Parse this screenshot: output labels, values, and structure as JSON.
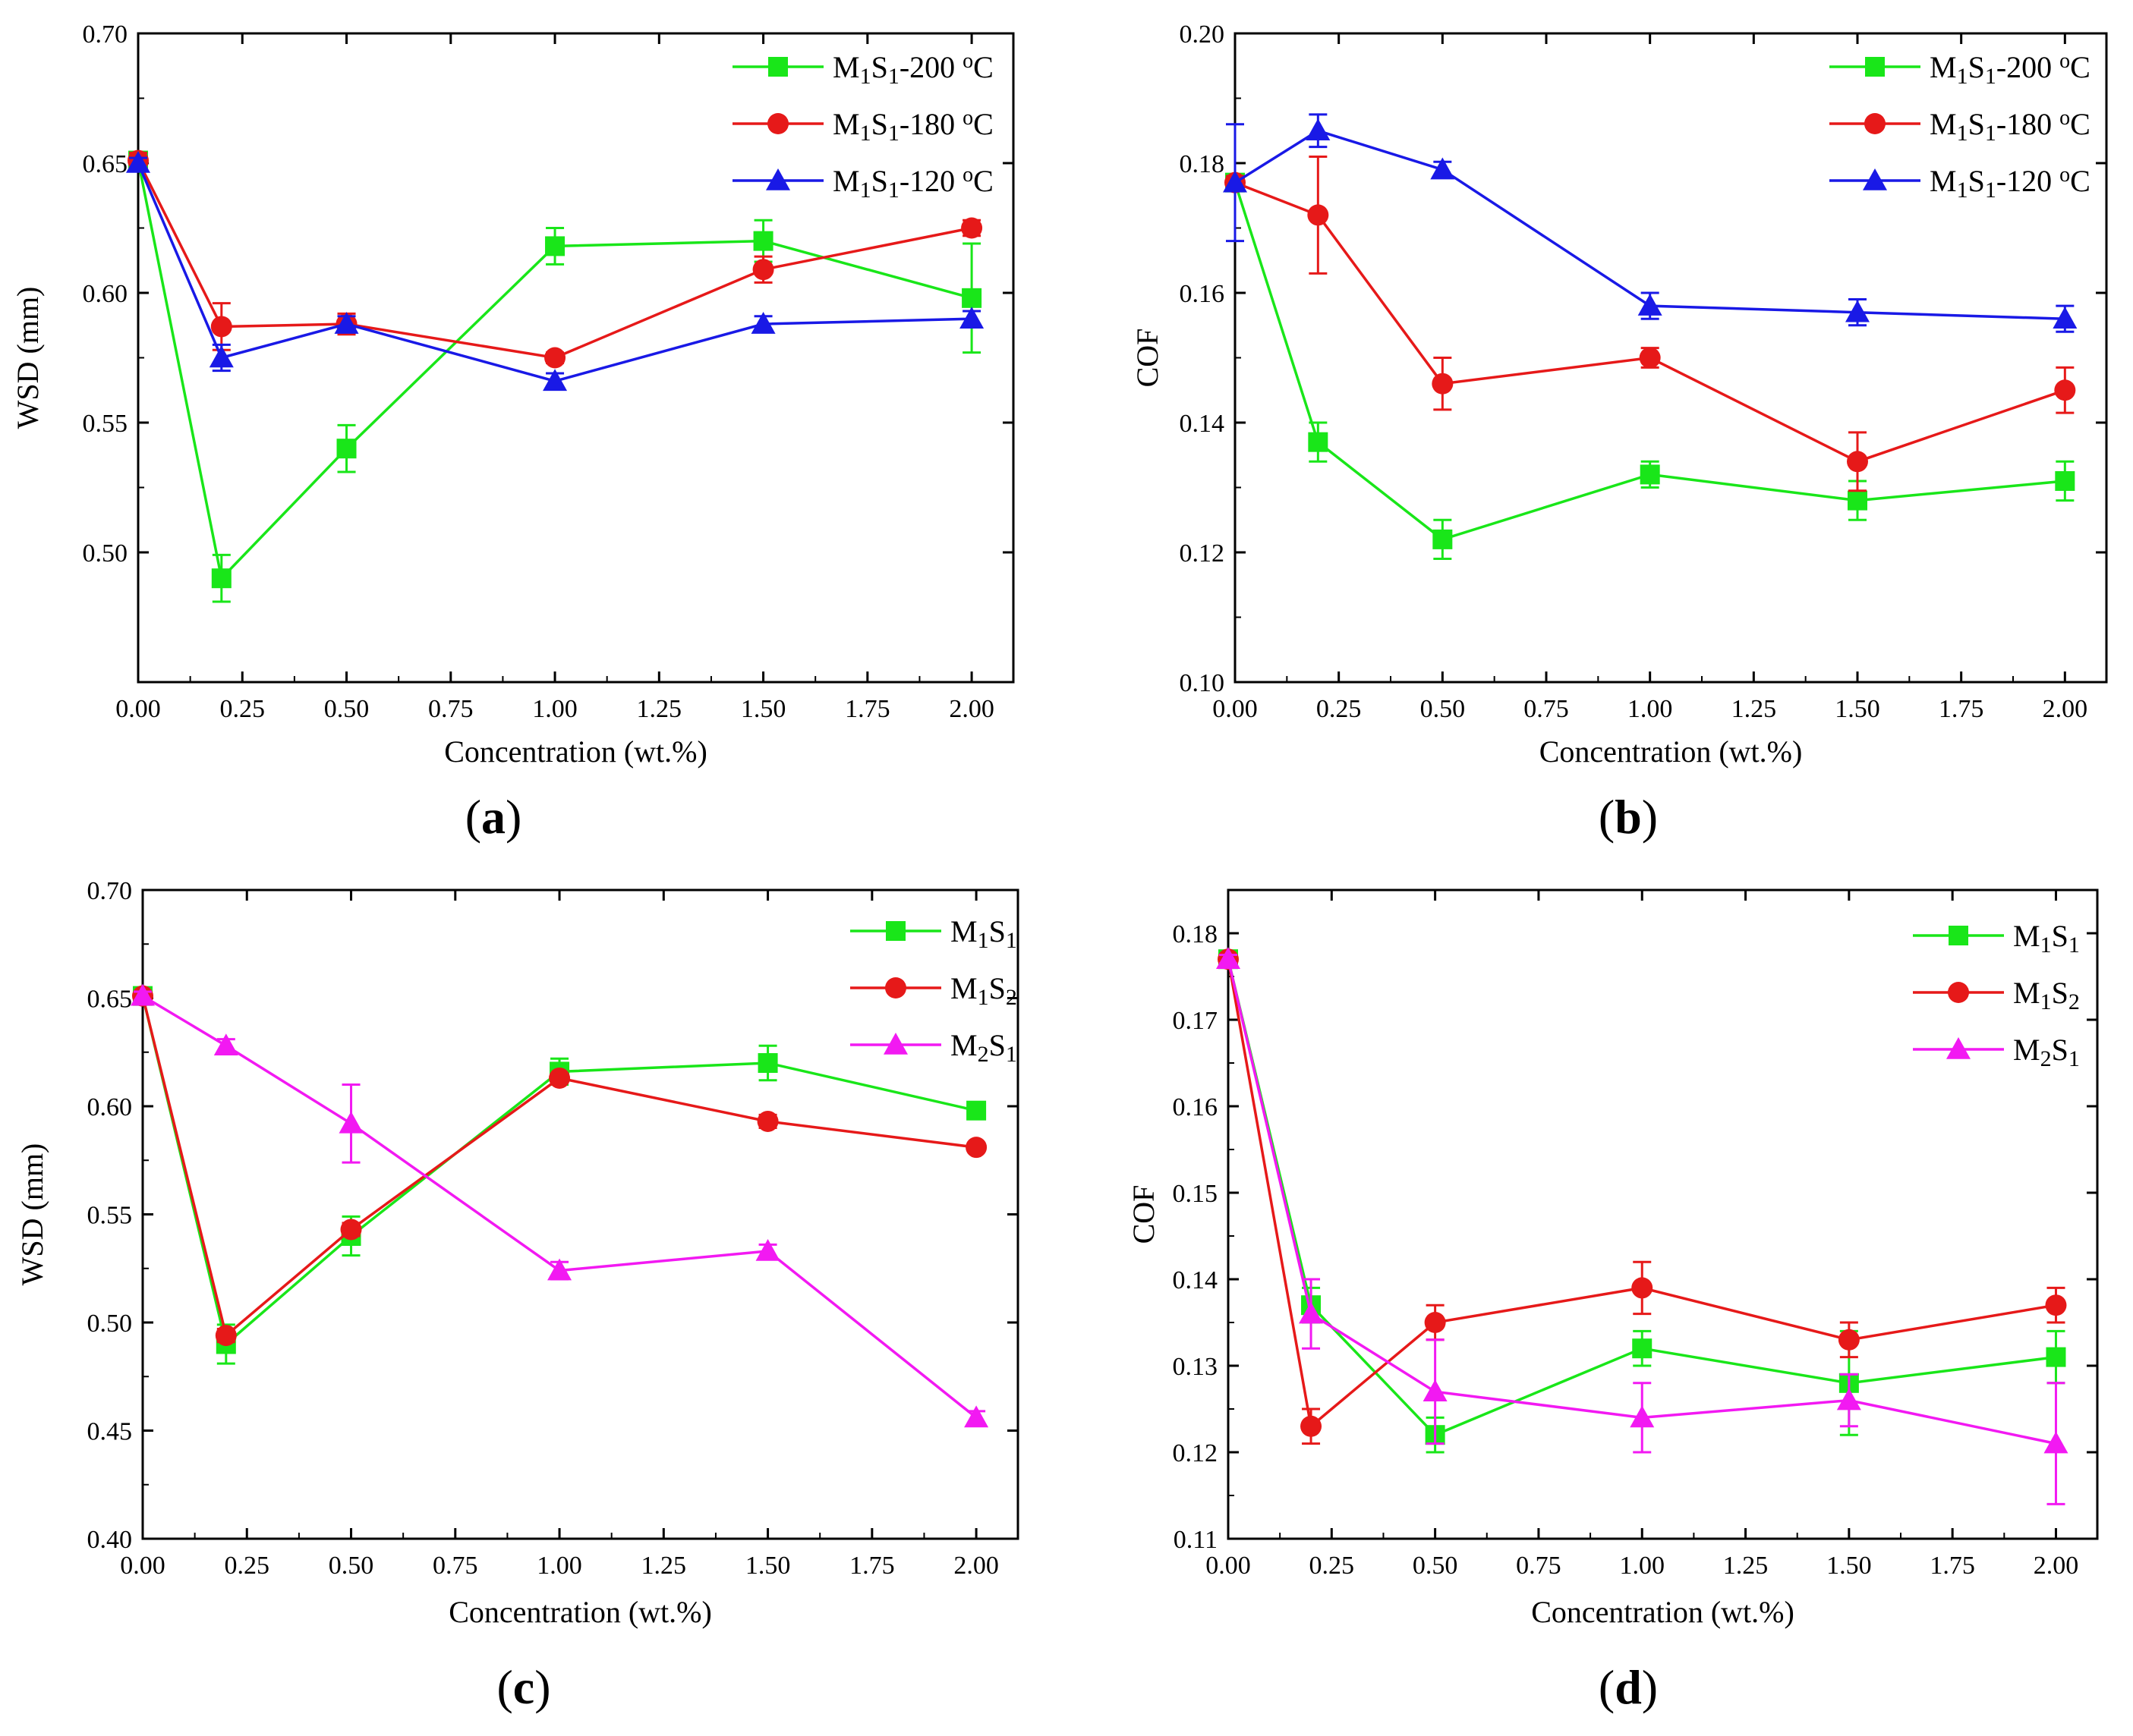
{
  "colors": {
    "green": "#19e619",
    "red": "#e61919",
    "blue": "#1919e6",
    "magenta": "#f219f2"
  },
  "chart_data": [
    {
      "type": "line",
      "panel_label": "(a)",
      "xlabel": "Concentration (wt.%)",
      "ylabel": "WSD (mm)",
      "xlim": [
        0,
        2.1
      ],
      "ylim": [
        0.45,
        0.7
      ],
      "xticks": [
        0,
        0.25,
        0.5,
        0.75,
        1.0,
        1.25,
        1.5,
        1.75,
        2.0
      ],
      "xtick_labels": [
        "0.00",
        "0.25",
        "0.50",
        "0.75",
        "1.00",
        "1.25",
        "1.50",
        "1.75",
        "2.00"
      ],
      "yticks": [
        0.5,
        0.55,
        0.6,
        0.65,
        0.7
      ],
      "ytick_labels": [
        "0.50",
        "0.55",
        "0.60",
        "0.65",
        "0.70"
      ],
      "x": [
        0,
        0.2,
        0.5,
        1.0,
        1.5,
        2.0
      ],
      "series": [
        {
          "name": "M1S1-200 °C",
          "base": "M",
          "sub1": "1",
          "mid": "S",
          "sub2": "1",
          "suffix": "-200 ",
          "sup": "o",
          "unit": "C",
          "color": "green",
          "marker": "square",
          "values": [
            0.651,
            0.49,
            0.54,
            0.618,
            0.62,
            0.598
          ],
          "err": [
            0.003,
            0.009,
            0.009,
            0.007,
            0.008,
            0.021
          ]
        },
        {
          "name": "M1S1-180 °C",
          "base": "M",
          "sub1": "1",
          "mid": "S",
          "sub2": "1",
          "suffix": "-180 ",
          "sup": "o",
          "unit": "C",
          "color": "red",
          "marker": "circle",
          "values": [
            0.651,
            0.587,
            0.588,
            0.575,
            0.609,
            0.625
          ],
          "err": [
            0.003,
            0.009,
            0.004,
            0.002,
            0.005,
            0.003
          ]
        },
        {
          "name": "M1S1-120 °C",
          "base": "M",
          "sub1": "1",
          "mid": "S",
          "sub2": "1",
          "suffix": "-120 ",
          "sup": "o",
          "unit": "C",
          "color": "blue",
          "marker": "triangle",
          "values": [
            0.65,
            0.575,
            0.588,
            0.566,
            0.588,
            0.59
          ],
          "err": [
            0.002,
            0.005,
            0.003,
            0.003,
            0.003,
            0.003
          ]
        }
      ]
    },
    {
      "type": "line",
      "panel_label": "(b)",
      "xlabel": "Concentration (wt.%)",
      "ylabel": "COF",
      "xlim": [
        0,
        2.1
      ],
      "ylim": [
        0.1,
        0.2
      ],
      "xticks": [
        0,
        0.25,
        0.5,
        0.75,
        1.0,
        1.25,
        1.5,
        1.75,
        2.0
      ],
      "xtick_labels": [
        "0.00",
        "0.25",
        "0.50",
        "0.75",
        "1.00",
        "1.25",
        "1.50",
        "1.75",
        "2.00"
      ],
      "yticks": [
        0.1,
        0.12,
        0.14,
        0.16,
        0.18,
        0.2
      ],
      "ytick_labels": [
        "0.10",
        "0.12",
        "0.14",
        "0.16",
        "0.18",
        "0.20"
      ],
      "x": [
        0,
        0.2,
        0.5,
        1.0,
        1.5,
        2.0
      ],
      "series": [
        {
          "name": "M1S1-200 °C",
          "base": "M",
          "sub1": "1",
          "mid": "S",
          "sub2": "1",
          "suffix": "-200 ",
          "sup": "o",
          "unit": "C",
          "color": "green",
          "marker": "square",
          "values": [
            0.177,
            0.137,
            0.122,
            0.132,
            0.128,
            0.131
          ],
          "err": [
            0.001,
            0.003,
            0.003,
            0.002,
            0.003,
            0.003
          ]
        },
        {
          "name": "M1S1-180 °C",
          "base": "M",
          "sub1": "1",
          "mid": "S",
          "sub2": "1",
          "suffix": "-180 ",
          "sup": "o",
          "unit": "C",
          "color": "red",
          "marker": "circle",
          "values": [
            0.177,
            0.172,
            0.146,
            0.15,
            0.134,
            0.145
          ],
          "err": [
            0.001,
            0.009,
            0.004,
            0.0015,
            0.0045,
            0.0035
          ]
        },
        {
          "name": "M1S1-120 °C",
          "base": "M",
          "sub1": "1",
          "mid": "S",
          "sub2": "1",
          "suffix": "-120 ",
          "sup": "o",
          "unit": "C",
          "color": "blue",
          "marker": "triangle",
          "values": [
            0.177,
            0.185,
            0.179,
            0.158,
            0.157,
            0.156
          ],
          "err": [
            0.009,
            0.0025,
            0.0012,
            0.002,
            0.002,
            0.002
          ]
        }
      ]
    },
    {
      "type": "line",
      "panel_label": "(c)",
      "xlabel": "Concentration (wt.%)",
      "ylabel": "WSD (mm)",
      "xlim": [
        0,
        2.1
      ],
      "ylim": [
        0.4,
        0.7
      ],
      "xticks": [
        0,
        0.25,
        0.5,
        0.75,
        1.0,
        1.25,
        1.5,
        1.75,
        2.0
      ],
      "xtick_labels": [
        "0.00",
        "0.25",
        "0.50",
        "0.75",
        "1.00",
        "1.25",
        "1.50",
        "1.75",
        "2.00"
      ],
      "yticks": [
        0.4,
        0.45,
        0.5,
        0.55,
        0.6,
        0.65,
        0.7
      ],
      "ytick_labels": [
        "0.40",
        "0.45",
        "0.50",
        "0.55",
        "0.60",
        "0.65",
        "0.70"
      ],
      "x": [
        0,
        0.2,
        0.5,
        1.0,
        1.5,
        2.0
      ],
      "series": [
        {
          "name": "M1S1",
          "base": "M",
          "sub1": "1",
          "mid": "S",
          "sub2": "1",
          "suffix": "",
          "sup": "",
          "unit": "",
          "color": "green",
          "marker": "square",
          "values": [
            0.651,
            0.49,
            0.54,
            0.616,
            0.62,
            0.598
          ],
          "err": [
            0.002,
            0.009,
            0.009,
            0.006,
            0.008,
            0.003
          ]
        },
        {
          "name": "M1S2",
          "base": "M",
          "sub1": "1",
          "mid": "S",
          "sub2": "2",
          "suffix": "",
          "sup": "",
          "unit": "",
          "color": "red",
          "marker": "circle",
          "values": [
            0.651,
            0.494,
            0.543,
            0.613,
            0.593,
            0.581
          ],
          "err": [
            0.002,
            0.003,
            0.003,
            0.002,
            0.003,
            0.002
          ]
        },
        {
          "name": "M2S1",
          "base": "M",
          "sub1": "2",
          "mid": "S",
          "sub2": "1",
          "suffix": "",
          "sup": "",
          "unit": "",
          "color": "magenta",
          "marker": "triangle",
          "values": [
            0.651,
            0.628,
            0.592,
            0.524,
            0.533,
            0.456
          ],
          "err": [
            0.002,
            0.003,
            0.018,
            0.004,
            0.003,
            0.003
          ]
        }
      ]
    },
    {
      "type": "line",
      "panel_label": "(d)",
      "xlabel": "Concentration (wt.%)",
      "ylabel": "COF",
      "xlim": [
        0,
        2.1
      ],
      "ylim": [
        0.11,
        0.185
      ],
      "xticks": [
        0,
        0.25,
        0.5,
        0.75,
        1.0,
        1.25,
        1.5,
        1.75,
        2.0
      ],
      "xtick_labels": [
        "0.00",
        "0.25",
        "0.50",
        "0.75",
        "1.00",
        "1.25",
        "1.50",
        "1.75",
        "2.00"
      ],
      "yticks": [
        0.11,
        0.12,
        0.13,
        0.14,
        0.15,
        0.16,
        0.17,
        0.18
      ],
      "ytick_labels": [
        "0.11",
        "0.12",
        "0.13",
        "0.14",
        "0.15",
        "0.16",
        "0.17",
        "0.18"
      ],
      "x": [
        0,
        0.2,
        0.5,
        1.0,
        1.5,
        2.0
      ],
      "series": [
        {
          "name": "M1S1",
          "base": "M",
          "sub1": "1",
          "mid": "S",
          "sub2": "1",
          "suffix": "",
          "sup": "",
          "unit": "",
          "color": "green",
          "marker": "square",
          "values": [
            0.177,
            0.137,
            0.122,
            0.132,
            0.128,
            0.131
          ],
          "err": [
            0.0005,
            0.002,
            0.002,
            0.002,
            0.006,
            0.003
          ]
        },
        {
          "name": "M1S2",
          "base": "M",
          "sub1": "1",
          "mid": "S",
          "sub2": "2",
          "suffix": "",
          "sup": "",
          "unit": "",
          "color": "red",
          "marker": "circle",
          "values": [
            0.177,
            0.123,
            0.135,
            0.139,
            0.133,
            0.137
          ],
          "err": [
            0.0005,
            0.002,
            0.002,
            0.003,
            0.002,
            0.002
          ]
        },
        {
          "name": "M2S1",
          "base": "M",
          "sub1": "2",
          "mid": "S",
          "sub2": "1",
          "suffix": "",
          "sup": "",
          "unit": "",
          "color": "magenta",
          "marker": "triangle",
          "values": [
            0.177,
            0.136,
            0.127,
            0.124,
            0.126,
            0.121
          ],
          "err": [
            0.0005,
            0.004,
            0.006,
            0.004,
            0.003,
            0.007
          ]
        }
      ]
    }
  ]
}
